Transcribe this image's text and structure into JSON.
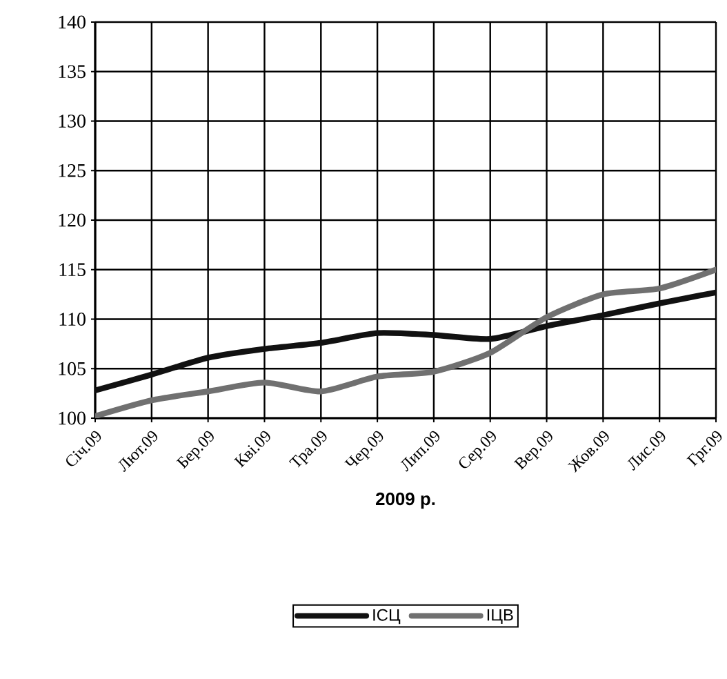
{
  "chart_data": {
    "type": "line",
    "xlabel": "2009 р.",
    "categories": [
      "Січ.09",
      "Лют.09",
      "Бер.09",
      "Кві.09",
      "Тра.09",
      "Чер.09",
      "Лип.09",
      "Сер.09",
      "Вер.09",
      "Жов.09",
      "Лис.09",
      "Грг.09"
    ],
    "series": [
      {
        "name": "ІСЦ",
        "color": "#111111",
        "values": [
          102.8,
          104.4,
          106.1,
          107.0,
          107.6,
          108.6,
          108.4,
          108.0,
          109.3,
          110.4,
          111.6,
          112.7
        ]
      },
      {
        "name": "ІЦВ",
        "color": "#707070",
        "values": [
          100.2,
          101.8,
          102.7,
          103.6,
          102.7,
          104.2,
          104.7,
          106.6,
          110.2,
          112.5,
          113.1,
          115.0
        ]
      }
    ],
    "ylim": [
      100,
      140
    ],
    "yticks": [
      100,
      105,
      110,
      115,
      120,
      125,
      130,
      135,
      140
    ],
    "grid": true,
    "legend": "bottom",
    "marker": "none",
    "line_style": "solid"
  }
}
